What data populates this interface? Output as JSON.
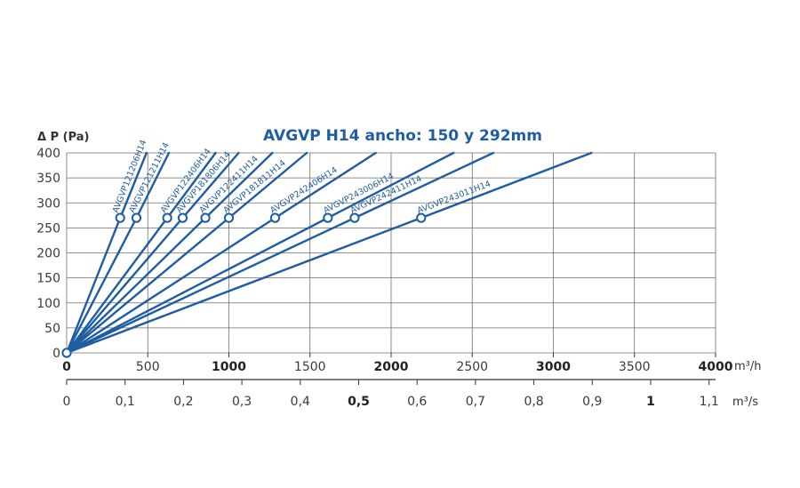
{
  "chart_data": {
    "type": "line",
    "title": "AVGVP H14  ancho: 150 y 292mm",
    "ylabel": "Δ P (Pa)",
    "xlabel_primary": "m³/h",
    "xlabel_secondary": "m³/s",
    "xlim": [
      0,
      4000
    ],
    "ylim": [
      0,
      400
    ],
    "grid": true,
    "y_ticks": [
      "0",
      "50",
      "100",
      "150",
      "200",
      "250",
      "300",
      "350",
      "400"
    ],
    "x_ticks": [
      "0",
      "500",
      "1000",
      "1500",
      "2000",
      "2500",
      "3000",
      "3500",
      "4000"
    ],
    "x_ticks_bold": [
      "0",
      "1000",
      "2000",
      "3000",
      "4000"
    ],
    "x2_ticks": [
      "0",
      "0,1",
      "0,2",
      "0,3",
      "0,4",
      "0,5",
      "0,6",
      "0,7",
      "0,8",
      "0,9",
      "1",
      "1,1"
    ],
    "x2_ticks_bold": [
      "0,5",
      "1"
    ],
    "line_color": "#1f5da3",
    "series": [
      {
        "name": "AVGVP121206H14",
        "x": [
          0,
          330,
          492
        ],
        "y": [
          0,
          270,
          400
        ]
      },
      {
        "name": "AVGVP121211H14",
        "x": [
          0,
          430,
          630
        ],
        "y": [
          0,
          270,
          400
        ]
      },
      {
        "name": "AVGVP122406H14",
        "x": [
          0,
          620,
          918
        ],
        "y": [
          0,
          270,
          400
        ]
      },
      {
        "name": "AVGVP181806H14",
        "x": [
          0,
          715,
          1060
        ],
        "y": [
          0,
          270,
          400
        ]
      },
      {
        "name": "AVGVP122411H14",
        "x": [
          0,
          855,
          1268
        ],
        "y": [
          0,
          270,
          400
        ]
      },
      {
        "name": "AVGVP181811H14",
        "x": [
          0,
          1000,
          1480
        ],
        "y": [
          0,
          270,
          400
        ]
      },
      {
        "name": "AVGVP242406H14",
        "x": [
          0,
          1285,
          1905
        ],
        "y": [
          0,
          270,
          400
        ]
      },
      {
        "name": "AVGVP243006H14",
        "x": [
          0,
          1610,
          2385
        ],
        "y": [
          0,
          270,
          400
        ]
      },
      {
        "name": "AVGVP242411H14",
        "x": [
          0,
          1775,
          2630
        ],
        "y": [
          0,
          270,
          400
        ]
      },
      {
        "name": "AVGVP243011H14",
        "x": [
          0,
          2185,
          3235
        ],
        "y": [
          0,
          270,
          400
        ]
      }
    ]
  }
}
